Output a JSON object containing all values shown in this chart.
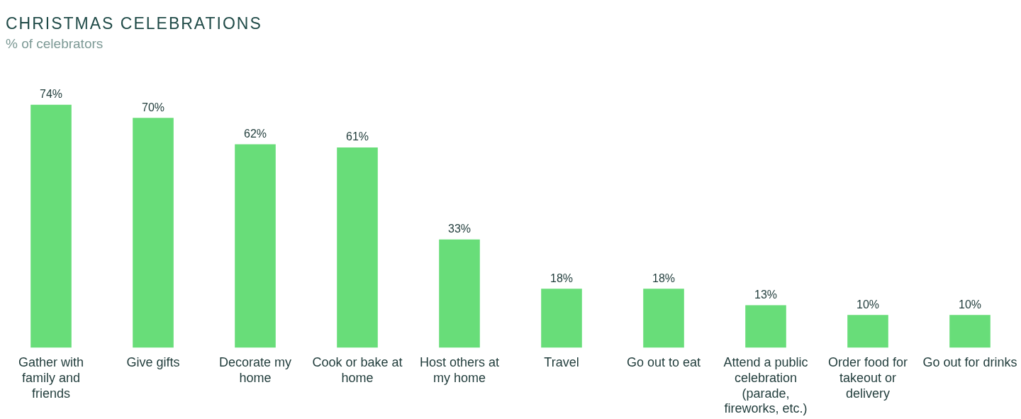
{
  "chart_data": {
    "type": "bar",
    "title": "CHRISTMAS CELEBRATIONS",
    "subtitle": "% of celebrators",
    "categories": [
      "Gather with family and friends",
      "Give gifts",
      "Decorate my home",
      "Cook or bake at home",
      "Host others at my home",
      "Travel",
      "Go out to eat",
      "Attend a public celebration (parade, fireworks, etc.)",
      "Order food for takeout or delivery",
      "Go out for drinks"
    ],
    "values": [
      74,
      70,
      62,
      61,
      33,
      18,
      18,
      13,
      10,
      10
    ],
    "value_labels": [
      "74%",
      "70%",
      "62%",
      "61%",
      "33%",
      "18%",
      "18%",
      "13%",
      "10%",
      "10%"
    ],
    "color": "#68dd79",
    "grid": false,
    "legend": false
  }
}
